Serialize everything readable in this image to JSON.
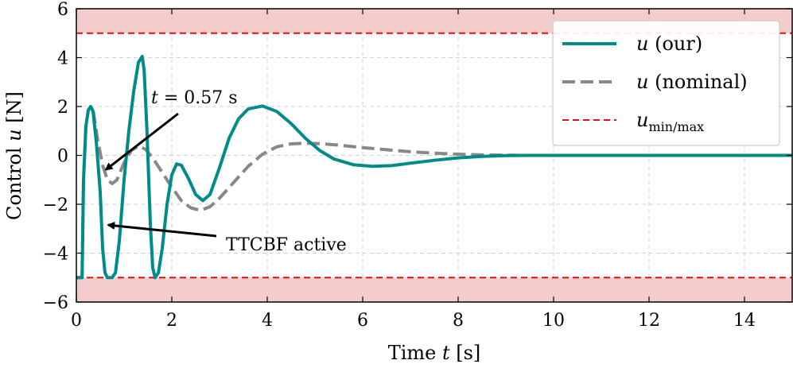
{
  "chart_data": {
    "type": "line",
    "xlabel_prefix": "Time ",
    "xlabel_var": "t",
    "xlabel_suffix": " [s]",
    "ylabel_prefix": "Control ",
    "ylabel_var": "u",
    "ylabel_suffix": " [N]",
    "xlim": [
      0,
      15
    ],
    "ylim": [
      -6,
      6
    ],
    "xticks": [
      0,
      2,
      4,
      6,
      8,
      10,
      12,
      14
    ],
    "yticks": [
      -6,
      -4,
      -2,
      0,
      2,
      4,
      6
    ],
    "ytick_labels": [
      "−6",
      "−4",
      "−2",
      "0",
      "2",
      "4",
      "6"
    ],
    "grid": true,
    "limits": {
      "u_min": -5,
      "u_max": 5
    },
    "shading_color": "#f4cccc",
    "series": [
      {
        "name": "u (our)",
        "var": "u",
        "label": "(our)",
        "color": "#008b8b",
        "style": "solid",
        "points": [
          [
            0,
            -5
          ],
          [
            0.12,
            -5
          ],
          [
            0.15,
            -1
          ],
          [
            0.2,
            1.2
          ],
          [
            0.25,
            1.85
          ],
          [
            0.3,
            2.0
          ],
          [
            0.35,
            1.8
          ],
          [
            0.42,
            0.5
          ],
          [
            0.5,
            -1.5
          ],
          [
            0.55,
            -3.8
          ],
          [
            0.6,
            -4.8
          ],
          [
            0.65,
            -5
          ],
          [
            0.75,
            -5
          ],
          [
            0.82,
            -4.8
          ],
          [
            0.9,
            -3.5
          ],
          [
            1.0,
            -1.0
          ],
          [
            1.1,
            1.0
          ],
          [
            1.2,
            2.6
          ],
          [
            1.3,
            3.8
          ],
          [
            1.38,
            4.05
          ],
          [
            1.42,
            3.5
          ],
          [
            1.48,
            1.0
          ],
          [
            1.55,
            -2.8
          ],
          [
            1.6,
            -4.6
          ],
          [
            1.65,
            -5
          ],
          [
            1.72,
            -4.8
          ],
          [
            1.8,
            -3.8
          ],
          [
            1.9,
            -2.0
          ],
          [
            2.0,
            -0.8
          ],
          [
            2.1,
            -0.35
          ],
          [
            2.2,
            -0.4
          ],
          [
            2.35,
            -0.95
          ],
          [
            2.5,
            -1.6
          ],
          [
            2.65,
            -1.85
          ],
          [
            2.8,
            -1.6
          ],
          [
            3.0,
            -0.5
          ],
          [
            3.2,
            0.7
          ],
          [
            3.4,
            1.5
          ],
          [
            3.6,
            1.9
          ],
          [
            3.9,
            2.02
          ],
          [
            4.2,
            1.8
          ],
          [
            4.5,
            1.3
          ],
          [
            4.8,
            0.7
          ],
          [
            5.1,
            0.2
          ],
          [
            5.4,
            -0.15
          ],
          [
            5.8,
            -0.38
          ],
          [
            6.2,
            -0.45
          ],
          [
            6.6,
            -0.42
          ],
          [
            7.0,
            -0.32
          ],
          [
            7.5,
            -0.2
          ],
          [
            8.0,
            -0.1
          ],
          [
            8.5,
            -0.04
          ],
          [
            9.0,
            -0.01
          ],
          [
            9.5,
            0
          ],
          [
            10,
            0
          ],
          [
            11,
            0
          ],
          [
            12,
            0
          ],
          [
            13,
            0
          ],
          [
            14,
            0
          ],
          [
            15,
            0
          ]
        ]
      },
      {
        "name": "u (nominal)",
        "var": "u",
        "label": "(nominal)",
        "color": "#888888",
        "style": "dashed",
        "points": [
          [
            0,
            -5
          ],
          [
            0.12,
            -5
          ],
          [
            0.15,
            -1
          ],
          [
            0.2,
            1.2
          ],
          [
            0.25,
            1.85
          ],
          [
            0.3,
            2.0
          ],
          [
            0.35,
            1.85
          ],
          [
            0.45,
            0.6
          ],
          [
            0.55,
            -0.4
          ],
          [
            0.65,
            -1.0
          ],
          [
            0.75,
            -1.15
          ],
          [
            0.85,
            -1.0
          ],
          [
            1.0,
            -0.3
          ],
          [
            1.15,
            0.2
          ],
          [
            1.3,
            0.38
          ],
          [
            1.45,
            0.25
          ],
          [
            1.6,
            -0.1
          ],
          [
            1.8,
            -0.7
          ],
          [
            2.0,
            -1.3
          ],
          [
            2.2,
            -1.85
          ],
          [
            2.4,
            -2.15
          ],
          [
            2.6,
            -2.25
          ],
          [
            2.8,
            -2.1
          ],
          [
            3.0,
            -1.75
          ],
          [
            3.3,
            -1.1
          ],
          [
            3.6,
            -0.45
          ],
          [
            3.9,
            0.05
          ],
          [
            4.2,
            0.35
          ],
          [
            4.5,
            0.47
          ],
          [
            4.8,
            0.5
          ],
          [
            5.1,
            0.48
          ],
          [
            5.5,
            0.42
          ],
          [
            6.0,
            0.32
          ],
          [
            6.5,
            0.23
          ],
          [
            7.0,
            0.15
          ],
          [
            7.5,
            0.09
          ],
          [
            8.0,
            0.05
          ],
          [
            8.5,
            0.02
          ],
          [
            9.0,
            0.01
          ],
          [
            9.5,
            0
          ],
          [
            10,
            0
          ],
          [
            11,
            0
          ],
          [
            12,
            0
          ],
          [
            13,
            0
          ],
          [
            14,
            0
          ],
          [
            15,
            0
          ]
        ]
      },
      {
        "name": "u_min/max",
        "var": "u",
        "sub": "min/max",
        "color": "#dd1111",
        "style": "dashed-limit"
      }
    ],
    "annotations": [
      {
        "text_pre": "t",
        "text_post": " = 0.57 s",
        "target": [
          0.57,
          -0.55
        ]
      },
      {
        "text": "TTCBF active",
        "target": [
          0.62,
          -2.85
        ]
      }
    ]
  }
}
